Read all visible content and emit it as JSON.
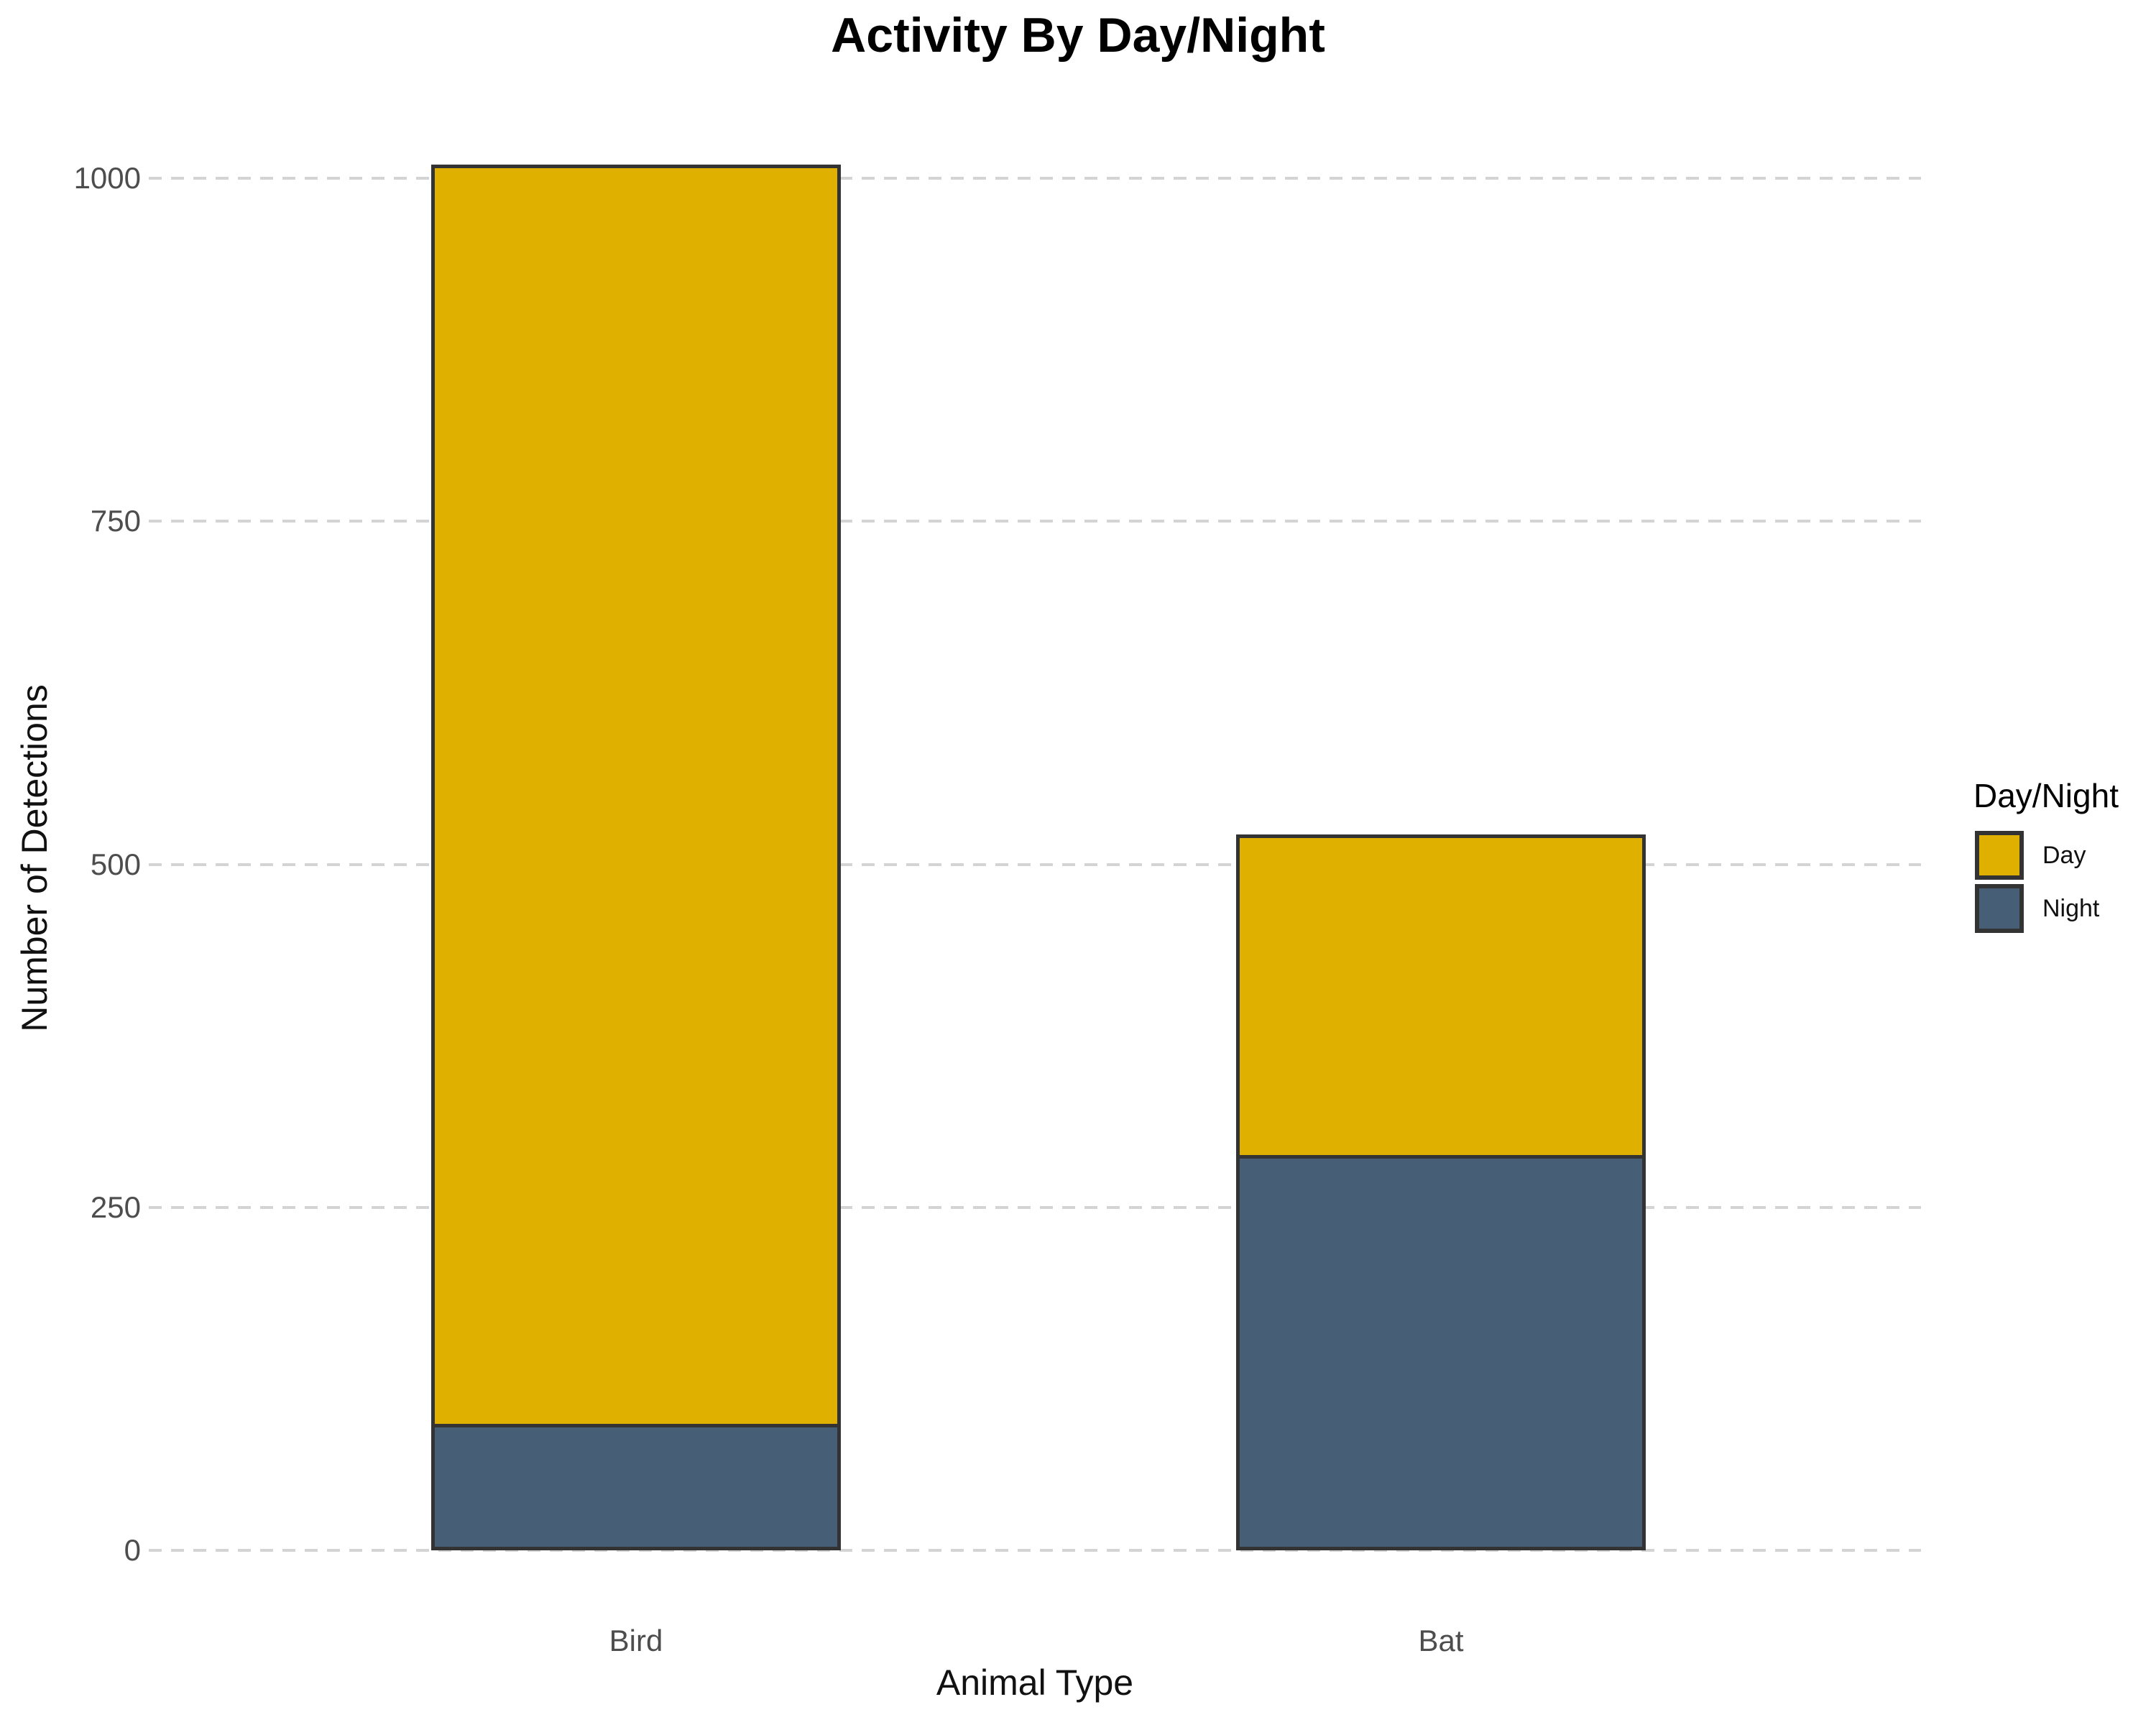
{
  "title": "Activity By Day/Night",
  "axes": {
    "x_title": "Animal Type",
    "y_title": "Number of Detections",
    "y_tick_labels": [
      "0",
      "250",
      "500",
      "750",
      "1000"
    ]
  },
  "legend": {
    "title": "Day/Night",
    "entries": [
      {
        "label": "Day",
        "color": "#e0b000"
      },
      {
        "label": "Night",
        "color": "#475e77"
      }
    ]
  },
  "chart_data": {
    "type": "bar",
    "stacked": true,
    "title": "Activity By Day/Night",
    "xlabel": "Animal Type",
    "ylabel": "Number of Detections",
    "categories": [
      "Bird",
      "Bat"
    ],
    "series": [
      {
        "name": "Day",
        "values": [
          918,
          234
        ],
        "color": "#e0b000"
      },
      {
        "name": "Night",
        "values": [
          92,
          288
        ],
        "color": "#475e77"
      }
    ],
    "stack_order": [
      "Night",
      "Day"
    ],
    "totals": [
      1010,
      522
    ],
    "y_ticks": [
      0,
      250,
      500,
      750,
      1000
    ],
    "ylim": [
      0,
      1050
    ],
    "grid": "horizontal-dashed",
    "legend_position": "right",
    "colors": {
      "bar_border": "#333333",
      "gridline": "#d4d4d4",
      "tick_label": "#4d4d4d",
      "axis_title": "#111111",
      "background": "#ffffff"
    }
  }
}
